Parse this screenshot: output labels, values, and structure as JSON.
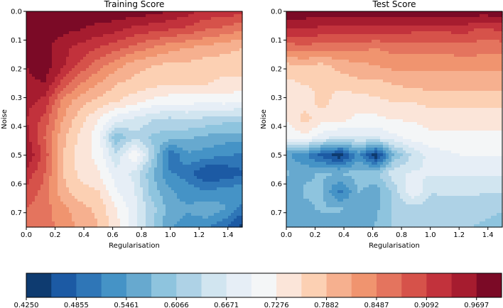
{
  "chart_data": [
    {
      "type": "heatmap",
      "style": "filled-contour",
      "title": "Training Score",
      "xlabel": "Regularisation",
      "ylabel": "Noise",
      "xlim": [
        0.0,
        1.5
      ],
      "ylim": [
        0.0,
        0.75
      ],
      "y_inverted": true,
      "xticks": [
        "0.0",
        "0.2",
        "0.4",
        "0.6",
        "0.8",
        "1.0",
        "1.2",
        "1.4"
      ],
      "yticks": [
        "0.0",
        "0.1",
        "0.2",
        "0.3",
        "0.4",
        "0.5",
        "0.6",
        "0.7"
      ],
      "x": [
        0.0,
        0.125,
        0.25,
        0.375,
        0.5,
        0.625,
        0.75,
        0.875,
        1.0,
        1.125,
        1.25,
        1.375,
        1.5
      ],
      "y": [
        0.0,
        0.0625,
        0.125,
        0.1875,
        0.25,
        0.3125,
        0.375,
        0.4375,
        0.5,
        0.5625,
        0.625,
        0.6875,
        0.75
      ],
      "z": [
        [
          0.99,
          0.99,
          0.99,
          0.99,
          0.99,
          0.99,
          0.99,
          0.98,
          0.97,
          0.95,
          0.93,
          0.93,
          0.92
        ],
        [
          0.99,
          0.99,
          0.98,
          0.97,
          0.96,
          0.95,
          0.93,
          0.92,
          0.91,
          0.9,
          0.88,
          0.87,
          0.85
        ],
        [
          0.98,
          0.98,
          0.95,
          0.93,
          0.91,
          0.89,
          0.87,
          0.85,
          0.83,
          0.82,
          0.81,
          0.8,
          0.79
        ],
        [
          0.97,
          0.99,
          0.95,
          0.9,
          0.86,
          0.83,
          0.8,
          0.79,
          0.78,
          0.78,
          0.77,
          0.77,
          0.77
        ],
        [
          0.96,
          0.97,
          0.9,
          0.85,
          0.82,
          0.79,
          0.78,
          0.77,
          0.76,
          0.76,
          0.76,
          0.75,
          0.75
        ],
        [
          0.95,
          0.93,
          0.84,
          0.8,
          0.78,
          0.76,
          0.74,
          0.72,
          0.71,
          0.71,
          0.7,
          0.71,
          0.7
        ],
        [
          0.94,
          0.9,
          0.82,
          0.77,
          0.73,
          0.68,
          0.66,
          0.64,
          0.63,
          0.64,
          0.63,
          0.62,
          0.62
        ],
        [
          0.95,
          0.88,
          0.8,
          0.75,
          0.71,
          0.58,
          0.63,
          0.6,
          0.59,
          0.58,
          0.57,
          0.56,
          0.56
        ],
        [
          0.97,
          0.9,
          0.79,
          0.74,
          0.72,
          0.64,
          0.73,
          0.62,
          0.49,
          0.54,
          0.53,
          0.52,
          0.51
        ],
        [
          0.93,
          0.88,
          0.79,
          0.75,
          0.73,
          0.68,
          0.66,
          0.58,
          0.52,
          0.5,
          0.45,
          0.46,
          0.48
        ],
        [
          0.9,
          0.87,
          0.8,
          0.77,
          0.76,
          0.7,
          0.67,
          0.59,
          0.55,
          0.53,
          0.52,
          0.53,
          0.54
        ],
        [
          0.88,
          0.86,
          0.83,
          0.8,
          0.78,
          0.73,
          0.68,
          0.62,
          0.56,
          0.55,
          0.57,
          0.55,
          0.5
        ],
        [
          0.87,
          0.86,
          0.84,
          0.81,
          0.79,
          0.74,
          0.68,
          0.61,
          0.55,
          0.53,
          0.52,
          0.49,
          0.44
        ]
      ]
    },
    {
      "type": "heatmap",
      "style": "filled-contour",
      "title": "Test Score",
      "xlabel": "Regularisation",
      "ylabel": "Noise",
      "xlim": [
        0.0,
        1.5
      ],
      "ylim": [
        0.0,
        0.75
      ],
      "y_inverted": true,
      "xticks": [
        "0.0",
        "0.2",
        "0.4",
        "0.6",
        "0.8",
        "1.0",
        "1.2",
        "1.4"
      ],
      "yticks": [
        "0.0",
        "0.1",
        "0.2",
        "0.3",
        "0.4",
        "0.5",
        "0.6",
        "0.7"
      ],
      "x": [
        0.0,
        0.125,
        0.25,
        0.375,
        0.5,
        0.625,
        0.75,
        0.875,
        1.0,
        1.125,
        1.25,
        1.375,
        1.5
      ],
      "y": [
        0.0,
        0.0625,
        0.125,
        0.1875,
        0.25,
        0.3125,
        0.375,
        0.4375,
        0.5,
        0.5625,
        0.625,
        0.6875,
        0.75
      ],
      "z": [
        [
          0.99,
          0.99,
          0.99,
          0.99,
          0.99,
          0.99,
          0.99,
          0.99,
          0.99,
          0.99,
          0.99,
          0.99,
          0.99
        ],
        [
          0.94,
          0.94,
          0.93,
          0.93,
          0.93,
          0.93,
          0.93,
          0.92,
          0.92,
          0.92,
          0.92,
          0.9,
          0.92
        ],
        [
          0.86,
          0.87,
          0.86,
          0.86,
          0.86,
          0.85,
          0.86,
          0.86,
          0.86,
          0.86,
          0.87,
          0.86,
          0.86
        ],
        [
          0.78,
          0.79,
          0.78,
          0.8,
          0.81,
          0.82,
          0.83,
          0.83,
          0.83,
          0.83,
          0.83,
          0.83,
          0.83
        ],
        [
          0.75,
          0.76,
          0.76,
          0.77,
          0.78,
          0.78,
          0.79,
          0.8,
          0.8,
          0.8,
          0.8,
          0.8,
          0.8
        ],
        [
          0.74,
          0.74,
          0.77,
          0.74,
          0.74,
          0.75,
          0.76,
          0.76,
          0.77,
          0.77,
          0.77,
          0.77,
          0.77
        ],
        [
          0.73,
          0.77,
          0.74,
          0.74,
          0.72,
          0.72,
          0.73,
          0.73,
          0.74,
          0.74,
          0.74,
          0.74,
          0.74
        ],
        [
          0.7,
          0.72,
          0.68,
          0.66,
          0.67,
          0.67,
          0.69,
          0.71,
          0.72,
          0.72,
          0.72,
          0.72,
          0.72
        ],
        [
          0.55,
          0.52,
          0.47,
          0.43,
          0.53,
          0.43,
          0.58,
          0.64,
          0.68,
          0.69,
          0.7,
          0.7,
          0.7
        ],
        [
          0.58,
          0.57,
          0.58,
          0.58,
          0.59,
          0.6,
          0.66,
          0.67,
          0.67,
          0.67,
          0.67,
          0.67,
          0.67
        ],
        [
          0.55,
          0.58,
          0.58,
          0.5,
          0.58,
          0.56,
          0.62,
          0.7,
          0.64,
          0.64,
          0.64,
          0.64,
          0.64
        ],
        [
          0.56,
          0.57,
          0.58,
          0.58,
          0.56,
          0.57,
          0.61,
          0.62,
          0.62,
          0.63,
          0.63,
          0.62,
          0.61
        ],
        [
          0.56,
          0.56,
          0.56,
          0.56,
          0.56,
          0.58,
          0.61,
          0.62,
          0.62,
          0.62,
          0.61,
          0.6,
          0.59
        ]
      ]
    }
  ],
  "colorbar": {
    "label_values": [
      "0.4250",
      "0.4855",
      "0.5461",
      "0.6066",
      "0.6671",
      "0.7276",
      "0.7882",
      "0.8487",
      "0.9092",
      "0.9697"
    ],
    "boundaries": [
      0.425,
      0.4553,
      0.4855,
      0.5158,
      0.5461,
      0.5763,
      0.6066,
      0.6369,
      0.6671,
      0.6974,
      0.7276,
      0.7579,
      0.7882,
      0.8184,
      0.8487,
      0.879,
      0.9092,
      0.9395,
      0.9697,
      1.0
    ],
    "colors": [
      "#0e3b70",
      "#1c5aa4",
      "#2f76b7",
      "#4593c6",
      "#67a9cf",
      "#8ec4de",
      "#aed2e6",
      "#d1e5f0",
      "#e6eef6",
      "#f4f6f7",
      "#fbe5d9",
      "#fcd0b3",
      "#f6b08f",
      "#f0946f",
      "#e4745e",
      "#d6524a",
      "#c2323c",
      "#a61c2f",
      "#7b0a26"
    ]
  }
}
